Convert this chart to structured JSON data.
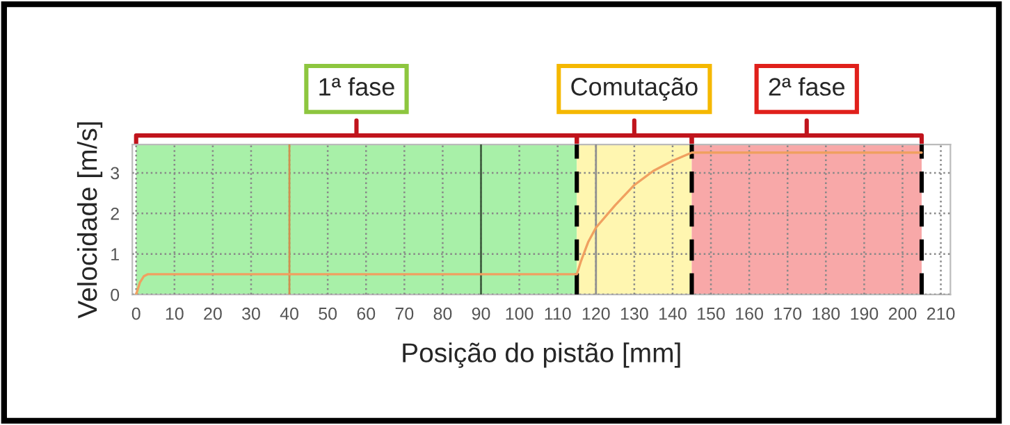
{
  "chart_data": {
    "type": "line",
    "xlabel": "Posição do pistão [mm]",
    "ylabel": "Velocidade [m/s]",
    "x": [
      0,
      1,
      2,
      3,
      115,
      116,
      118,
      120,
      125,
      130,
      135,
      140,
      145,
      205
    ],
    "series": [
      {
        "color": "#f0a060",
        "values": [
          0,
          0.3,
          0.45,
          0.5,
          0.5,
          0.8,
          1.3,
          1.65,
          2.2,
          2.7,
          3.05,
          3.3,
          3.5,
          3.5
        ]
      }
    ],
    "xlim": [
      -1,
      212.5
    ],
    "ylim": [
      0,
      3.7
    ],
    "xticks": [
      0,
      10,
      20,
      30,
      40,
      50,
      60,
      70,
      80,
      90,
      100,
      110,
      120,
      130,
      140,
      150,
      160,
      170,
      180,
      190,
      200,
      210
    ],
    "yticks": [
      0,
      1,
      2,
      3
    ],
    "grid": true,
    "marker": "none",
    "line_style": "solid",
    "bands": [
      {
        "axis": "x",
        "from": 0,
        "to": 115,
        "label": "1ª fase",
        "color": "#a8f0a8"
      },
      {
        "axis": "x",
        "from": 115,
        "to": 145,
        "label": "Comutação",
        "color": "#fff6b0"
      },
      {
        "axis": "x",
        "from": 145,
        "to": 205,
        "label": "2ª fase",
        "color": "#f8a8a8"
      }
    ],
    "ref_lines": [
      {
        "axis": "x",
        "value": 40,
        "label": null,
        "color": "#d09050",
        "line_style": "solid"
      },
      {
        "axis": "x",
        "value": 90,
        "label": null,
        "color": "#406040",
        "line_style": "solid"
      },
      {
        "axis": "x",
        "value": 120,
        "label": null,
        "color": "#909090",
        "line_style": "solid"
      },
      {
        "axis": "x",
        "value": 115,
        "label": null,
        "color": "#000000",
        "line_style": "dashed"
      },
      {
        "axis": "x",
        "value": 145,
        "label": null,
        "color": "#000000",
        "line_style": "dashed"
      },
      {
        "axis": "x",
        "value": 205,
        "label": null,
        "color": "#000000",
        "line_style": "dashed"
      }
    ]
  }
}
